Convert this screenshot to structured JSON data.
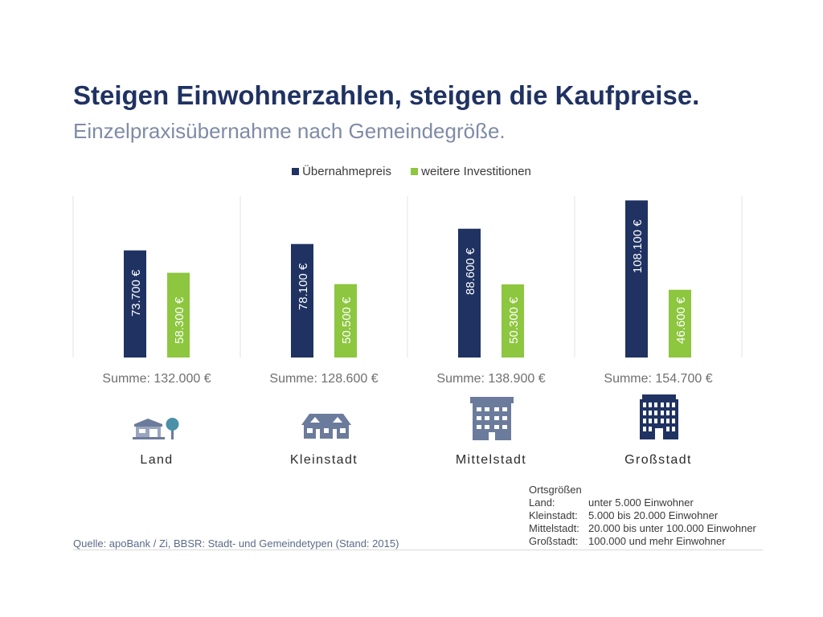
{
  "title": "Steigen Einwohnerzahlen, steigen die Kaufpreise.",
  "subtitle": "Einzelpraxisübernahme nach Gemeindegröße.",
  "colors": {
    "primary": "#1f3262",
    "secondary": "#8dc63f",
    "icon": "#6b7b9b"
  },
  "chart_data": {
    "type": "bar",
    "title": "Steigen Einwohnerzahlen, steigen die Kaufpreise.",
    "categories": [
      "Land",
      "Kleinstadt",
      "Mittelstadt",
      "Großstadt"
    ],
    "series": [
      {
        "name": "Übernahmepreis",
        "values": [
          73700,
          78100,
          88600,
          108100
        ],
        "labels": [
          "73.700 €",
          "78.100 €",
          "88.600 €",
          "108.100 €"
        ]
      },
      {
        "name": "weitere Investitionen",
        "values": [
          58300,
          50500,
          50300,
          46600
        ],
        "labels": [
          "58.300 €",
          "50.500 €",
          "50.300 €",
          "46.600 €"
        ]
      }
    ],
    "sums": [
      "Summe: 132.000 €",
      "Summe: 128.600 €",
      "Summe: 138.900 €",
      "Summe: 154.700  €"
    ],
    "ylim": [
      0,
      110000
    ],
    "legend_position": "top-center",
    "grid": false
  },
  "icons": [
    "country-house-icon",
    "townhouse-icon",
    "apartment-building-icon",
    "skyscraper-icon"
  ],
  "ortsgroessen": {
    "heading": "Ortsgrößen",
    "rows": [
      {
        "key": "Land:",
        "value": "unter 5.000 Einwohner"
      },
      {
        "key": "Kleinstadt:",
        "value": "5.000 bis 20.000 Einwohner"
      },
      {
        "key": "Mittelstadt:",
        "value": "20.000 bis unter 100.000 Einwohner"
      },
      {
        "key": "Großstadt:",
        "value": "100.000 und mehr Einwohner"
      }
    ]
  },
  "source": "Quelle: apoBank / Zi, BBSR: Stadt- und Gemeindetypen (Stand: 2015)"
}
